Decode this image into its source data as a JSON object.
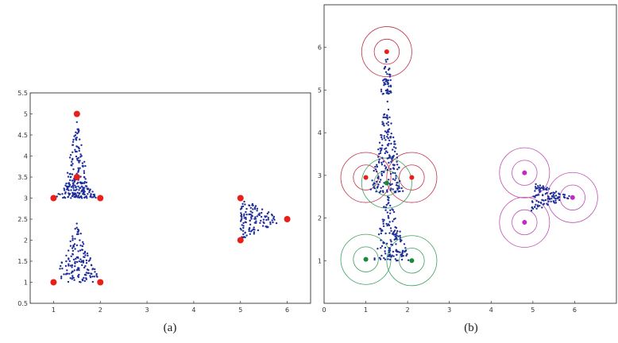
{
  "chart_data": [
    {
      "type": "scatter",
      "caption": "(a)",
      "xlim": [
        0.5,
        6.5
      ],
      "ylim": [
        0.5,
        5.5
      ],
      "x_ticks": [
        "1",
        "2",
        "3",
        "4",
        "5",
        "6"
      ],
      "y_ticks": [
        "0.5",
        "1",
        "1.5",
        "2",
        "2.5",
        "3",
        "3.5",
        "4",
        "4.5",
        "5",
        "5.5"
      ],
      "grid": false,
      "legend": "none",
      "colors": {
        "points": "#1f2f9a",
        "vertices": "#e8201c"
      },
      "vertices": [
        [
          1,
          1
        ],
        [
          2,
          1
        ],
        [
          1,
          3
        ],
        [
          2,
          3
        ],
        [
          1.5,
          3.5
        ],
        [
          1.5,
          5
        ],
        [
          5,
          2
        ],
        [
          5,
          3
        ],
        [
          6,
          2.5
        ]
      ],
      "point_regions": [
        {
          "triangle": [
            [
              1,
              1
            ],
            [
              2,
              1
            ],
            [
              1.5,
              2.4
            ]
          ],
          "count": 150
        },
        {
          "triangle": [
            [
              1,
              3
            ],
            [
              2,
              3
            ],
            [
              1.5,
              3.5
            ]
          ],
          "count": 90
        },
        {
          "triangle": [
            [
              1.2,
              3
            ],
            [
              1.8,
              3
            ],
            [
              1.5,
              4.9
            ]
          ],
          "count": 130
        },
        {
          "triangle": [
            [
              5,
              2
            ],
            [
              5,
              3
            ],
            [
              6,
              2.5
            ]
          ],
          "count": 120
        }
      ]
    },
    {
      "type": "scatter",
      "caption": "(b)",
      "xlim": [
        0,
        7
      ],
      "ylim": [
        0,
        7
      ],
      "x_ticks": [
        "0",
        "1",
        "2",
        "3",
        "4",
        "5",
        "6"
      ],
      "y_ticks": [
        "1",
        "2",
        "3",
        "4",
        "5",
        "6"
      ],
      "grid": false,
      "legend": "none",
      "colors": {
        "points": "#1f2f9a",
        "red": "#e8201c",
        "green": "#1a8a3a",
        "magenta": "#c02cc0",
        "red_ring": "#c0304a",
        "green_ring": "#3aa060",
        "magenta_ring": "#c050b0"
      },
      "centers": [
        {
          "x": 1.5,
          "y": 5.9,
          "color": "red"
        },
        {
          "x": 1.0,
          "y": 2.95,
          "color": "red"
        },
        {
          "x": 2.1,
          "y": 2.95,
          "color": "red"
        },
        {
          "x": 1.5,
          "y": 2.82,
          "color": "green"
        },
        {
          "x": 1.0,
          "y": 1.03,
          "color": "green"
        },
        {
          "x": 2.1,
          "y": 1.0,
          "color": "green"
        },
        {
          "x": 4.8,
          "y": 3.06,
          "color": "magenta"
        },
        {
          "x": 4.8,
          "y": 1.9,
          "color": "magenta"
        },
        {
          "x": 5.95,
          "y": 2.48,
          "color": "magenta"
        }
      ],
      "ring_radii": [
        0.3,
        0.6
      ],
      "point_regions": [
        {
          "triangle": [
            [
              1.35,
              4.9
            ],
            [
              1.65,
              4.9
            ],
            [
              1.5,
              6.0
            ]
          ],
          "count": 50
        },
        {
          "triangle": [
            [
              1.1,
              2.6
            ],
            [
              1.9,
              2.6
            ],
            [
              1.5,
              4.95
            ]
          ],
          "count": 180
        },
        {
          "triangle": [
            [
              1.2,
              1.0
            ],
            [
              2.05,
              1.0
            ],
            [
              1.5,
              2.7
            ]
          ],
          "count": 140
        },
        {
          "triangle": [
            [
              4.95,
              2.15
            ],
            [
              5.05,
              2.85
            ],
            [
              5.95,
              2.48
            ]
          ],
          "count": 110
        }
      ]
    }
  ]
}
